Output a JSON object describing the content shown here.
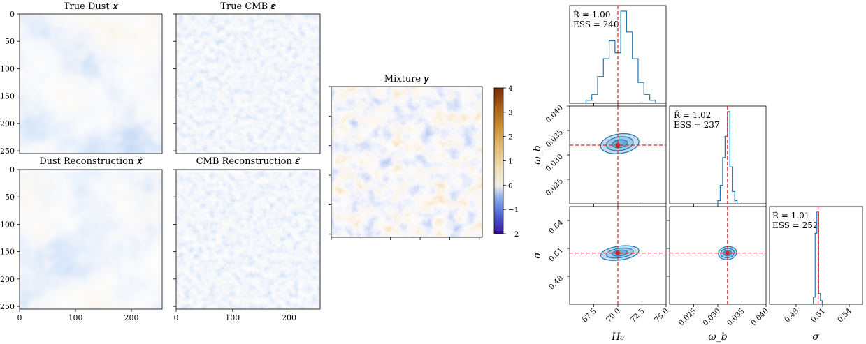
{
  "colors": {
    "colormap": [
      "#3a0ca3",
      "#4d2fc4",
      "#4a5fd8",
      "#5b86e0",
      "#8db0ea",
      "#c9d8ef",
      "#f2efe8",
      "#f0dfb6",
      "#e2bb6e",
      "#c98a2c",
      "#a45c12",
      "#7a2c05"
    ],
    "contour": "#1f77b4",
    "truth_line": "#d62728",
    "truth_point": "#d62728"
  },
  "panels": {
    "true_dust": {
      "title": "True Dust 𝒙"
    },
    "true_cmb": {
      "title": "True CMB 𝜺"
    },
    "dust_recon": {
      "title": "Dust Reconstruction 𝒙̂"
    },
    "cmb_recon": {
      "title": "CMB Reconstruction 𝜺̂"
    },
    "mixture": {
      "title": "Mixture 𝒚"
    }
  },
  "colorbar": {
    "ticks": [
      "4",
      "3",
      "2",
      "1",
      "0",
      "−1",
      "−2"
    ]
  },
  "image_axes": {
    "y_ticks": [
      "0",
      "50",
      "100",
      "150",
      "200",
      "250"
    ],
    "x_ticks": [
      "0",
      "100",
      "200"
    ]
  },
  "corner": {
    "params": [
      "H_0",
      "ω_b",
      "σ"
    ],
    "H0": {
      "label": "H₀",
      "ticks": [
        "67.5",
        "70.0",
        "72.5",
        "75.0"
      ],
      "range": [
        65,
        75
      ],
      "truth": 70.0
    },
    "omega_b": {
      "label": "ω_b",
      "ticks": [
        "0.025",
        "0.030",
        "0.035",
        "0.040"
      ],
      "range": [
        0.02,
        0.04
      ],
      "truth": 0.032
    },
    "sigma": {
      "label": "σ",
      "ticks": [
        "0.48",
        "0.51",
        "0.54"
      ],
      "range": [
        0.45,
        0.555
      ],
      "truth": 0.505
    },
    "stats": [
      {
        "rhat": "R̂ = 1.00",
        "ess": "ESS = 240"
      },
      {
        "rhat": "R̂ = 1.02",
        "ess": "ESS = 237"
      },
      {
        "rhat": "R̂ = 1.01",
        "ess": "ESS = 252"
      }
    ]
  },
  "chart_data": [
    {
      "type": "heatmap",
      "title": "True Dust 𝒙",
      "xlim": [
        0,
        255
      ],
      "ylim": [
        255,
        0
      ],
      "xticks": [
        0,
        100,
        200
      ],
      "yticks": [
        0,
        50,
        100,
        150,
        200,
        250
      ]
    },
    {
      "type": "heatmap",
      "title": "True CMB 𝜺",
      "xlim": [
        0,
        255
      ],
      "ylim": [
        255,
        0
      ]
    },
    {
      "type": "heatmap",
      "title": "Dust Reconstruction 𝒙̂",
      "xlim": [
        0,
        255
      ],
      "ylim": [
        255,
        0
      ],
      "xticks": [
        0,
        100,
        200
      ],
      "yticks": [
        0,
        50,
        100,
        150,
        200,
        250
      ]
    },
    {
      "type": "heatmap",
      "title": "CMB Reconstruction 𝜺̂",
      "xlim": [
        0,
        255
      ],
      "ylim": [
        255,
        0
      ],
      "xticks": [
        0,
        100,
        200
      ]
    },
    {
      "type": "heatmap",
      "title": "Mixture 𝒚",
      "colorbar_range": [
        -2,
        4
      ]
    },
    {
      "type": "histogram",
      "param": "H_0",
      "bins_x": [
        66.7,
        67.3,
        67.9,
        68.5,
        69.1,
        69.7,
        70.3,
        70.9,
        71.5,
        72.1,
        72.7,
        73.3
      ],
      "counts": [
        1,
        3,
        9,
        15,
        21,
        17,
        31,
        24,
        15,
        7,
        3,
        1
      ],
      "truth": 70.0,
      "rhat": 1.0,
      "ess": 240
    },
    {
      "type": "histogram",
      "param": "ω_b",
      "bins_x": [
        0.03,
        0.0305,
        0.031,
        0.0315,
        0.032,
        0.0325,
        0.033,
        0.0335
      ],
      "counts": [
        1,
        6,
        15,
        22,
        30,
        12,
        4,
        1
      ],
      "truth": 0.032,
      "rhat": 1.02,
      "ess": 237
    },
    {
      "type": "histogram",
      "param": "σ",
      "bins_x": [
        0.4995,
        0.5015,
        0.5035,
        0.5055,
        0.5075
      ],
      "counts": [
        2,
        20,
        26,
        3,
        1
      ],
      "truth": 0.505,
      "rhat": 1.01,
      "ess": 252
    },
    {
      "type": "contour",
      "x": "H_0",
      "y": "ω_b",
      "center": [
        70.2,
        0.0323
      ],
      "sigma_x": [
        0.8,
        1.4,
        2.0
      ],
      "sigma_y": [
        0.0008,
        0.0014,
        0.002
      ],
      "truth": [
        70.0,
        0.032
      ]
    },
    {
      "type": "contour",
      "x": "H_0",
      "y": "σ",
      "center": [
        70.2,
        0.505
      ],
      "sigma_x": [
        0.8,
        1.4,
        2.0
      ],
      "sigma_y": [
        0.003,
        0.005,
        0.0075
      ],
      "truth": [
        70.0,
        0.505
      ]
    },
    {
      "type": "contour",
      "x": "ω_b",
      "y": "σ",
      "center": [
        0.032,
        0.505
      ],
      "sigma_x": [
        0.0008,
        0.0014,
        0.0019
      ],
      "sigma_y": [
        0.003,
        0.005,
        0.007
      ],
      "truth": [
        0.032,
        0.505
      ]
    }
  ]
}
